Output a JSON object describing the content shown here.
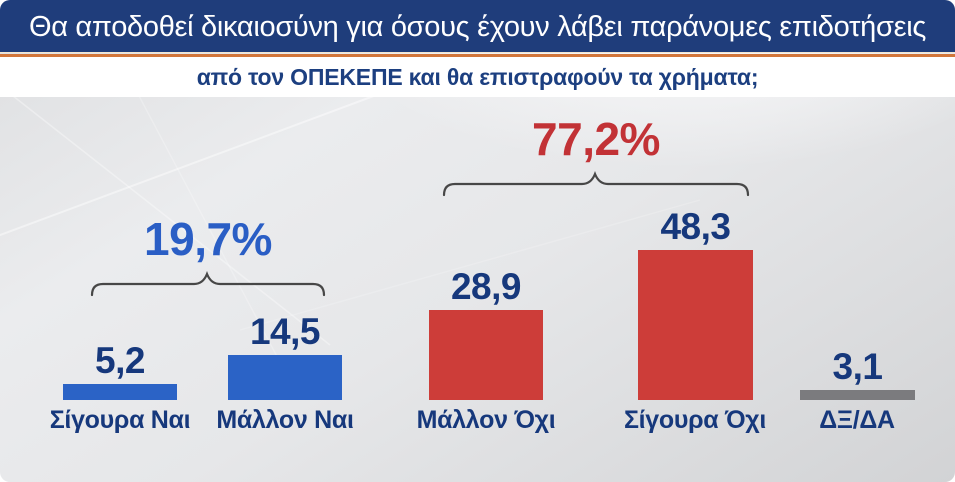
{
  "header": {
    "title": "Θα αποδοθεί δικαιοσύνη για όσους έχουν λάβει παράνομες επιδοτήσεις",
    "subtitle": "από τον ΟΠΕΚΕΠΕ και θα επιστραφούν τα χρήματα;"
  },
  "colors": {
    "header_bg": "#1f3d7b",
    "separator": "#d2763a",
    "subtitle_text": "#1c3f80",
    "bar_blue": "#2b63c6",
    "bar_red": "#cd3d39",
    "bar_gray": "#7b7b7e",
    "value_text": "#16387c",
    "label_text": "#16387c",
    "pct_yes_text": "#2a5ec5",
    "pct_no_text": "#c23236",
    "bracket": "#474747"
  },
  "chart_data": {
    "type": "bar",
    "title": "Θα αποδοθεί δικαιοσύνη για όσους έχουν λάβει παράνομες επιδοτήσεις από τον ΟΠΕΚΕΠΕ και θα επιστραφούν τα χρήματα;",
    "categories": [
      "Σίγουρα Ναι",
      "Μάλλον Ναι",
      "Μάλλον Όχι",
      "Σίγουρα Όχι",
      "ΔΞ/ΔΑ"
    ],
    "values": [
      5.2,
      14.5,
      28.9,
      48.3,
      3.1
    ],
    "value_labels": [
      "5,2",
      "14,5",
      "28,9",
      "48,3",
      "3,1"
    ],
    "bar_colors": [
      "#2b63c6",
      "#2b63c6",
      "#cd3d39",
      "#cd3d39",
      "#7b7b7e"
    ],
    "groups": [
      {
        "label": "19,7%",
        "categories": [
          "Σίγουρα Ναι",
          "Μάλλον Ναι"
        ]
      },
      {
        "label": "77,2%",
        "categories": [
          "Μάλλον Όχι",
          "Σίγουρα Όχι"
        ]
      }
    ],
    "xlabel": "",
    "ylabel": "",
    "ylim": [
      0,
      50
    ],
    "grid": false,
    "legend": false
  }
}
